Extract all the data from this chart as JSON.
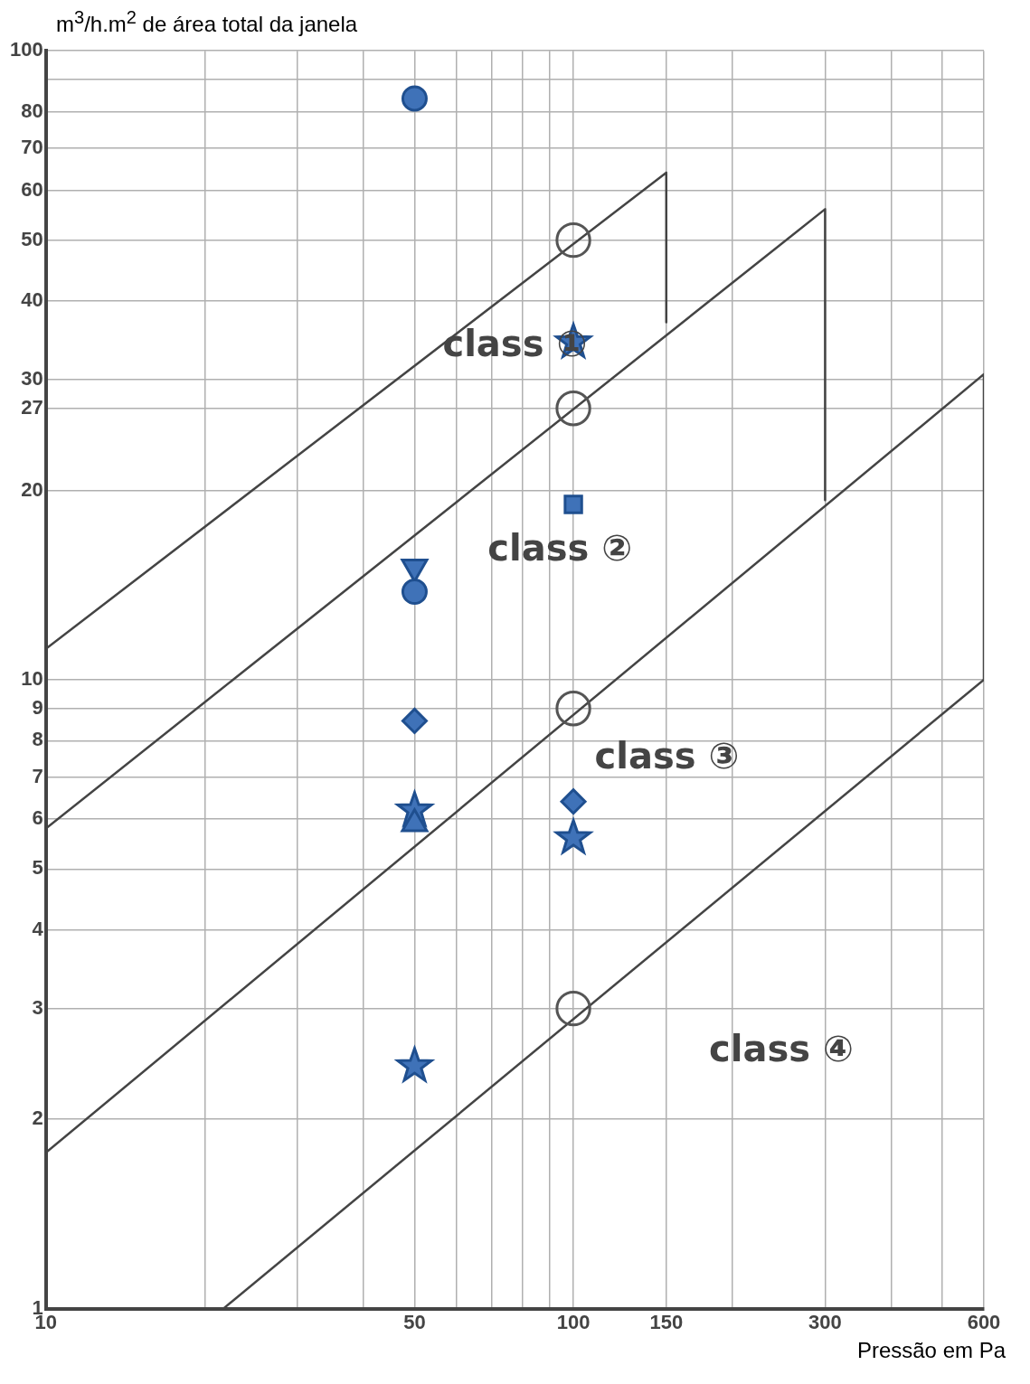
{
  "chart_data": {
    "type": "scatter",
    "xlabel": "Pressão em Pa",
    "ylabel": "m$^{3}$/h.m$^{2}$ de área total da janela",
    "log": "xy",
    "grid": true,
    "legend": false,
    "xlim": [
      10,
      600
    ],
    "ylim": [
      1,
      100
    ],
    "xticks": [
      10,
      {
        "value": 20,
        "label": null
      },
      {
        "value": 30,
        "label": null
      },
      {
        "value": 40,
        "label": null
      },
      50,
      {
        "value": 60,
        "label": null
      },
      {
        "value": 70,
        "label": null
      },
      {
        "value": 80,
        "label": null
      },
      {
        "value": 90,
        "label": null
      },
      100,
      150,
      {
        "value": 200,
        "label": null
      },
      300,
      {
        "value": 400,
        "label": null
      },
      {
        "value": 500,
        "label": null
      },
      600
    ],
    "yticks": [
      1,
      2,
      3,
      4,
      5,
      6,
      7,
      8,
      9,
      10,
      20,
      27,
      30,
      40,
      50,
      60,
      70,
      80,
      {
        "value": 90,
        "label": null
      },
      100
    ],
    "series": [
      {
        "type": "line",
        "color": "#444444",
        "marker": "none",
        "x": [
          10,
          150,
          150
        ],
        "values": [
          11.2,
          64,
          37
        ]
      },
      {
        "type": "line",
        "color": "#444444",
        "marker": "none",
        "x": [
          10,
          300,
          300
        ],
        "values": [
          5.8,
          56,
          19.3
        ]
      },
      {
        "type": "line",
        "color": "#444444",
        "marker": "none",
        "x": [
          10,
          600,
          600
        ],
        "values": [
          1.77,
          30.6,
          10
        ]
      },
      {
        "type": "line",
        "color": "#444444",
        "marker": "none",
        "x": [
          21.7,
          600
        ],
        "values": [
          1,
          10
        ]
      },
      {
        "color": "#555555",
        "marker": "circle_open",
        "x": [
          100,
          100,
          100,
          100
        ],
        "values": [
          50,
          27,
          9,
          3
        ]
      },
      {
        "color": "#3f72b8",
        "marker": "circle",
        "x": [
          50
        ],
        "values": [
          84
        ]
      },
      {
        "color": "#3f72b8",
        "marker": "triangle_down",
        "x": [
          50
        ],
        "values": [
          15.1
        ]
      },
      {
        "color": "#3f72b8",
        "marker": "circle",
        "x": [
          50
        ],
        "values": [
          13.8
        ]
      },
      {
        "color": "#3f72b8",
        "marker": "diamond",
        "x": [
          50,
          100
        ],
        "values": [
          8.6,
          6.4
        ]
      },
      {
        "color": "#3f72b8",
        "marker": "star",
        "x": [
          50,
          100
        ],
        "values": [
          6.2,
          34.4
        ]
      },
      {
        "color": "#3f72b8",
        "marker": "triangle",
        "x": [
          50
        ],
        "values": [
          5.9
        ]
      },
      {
        "color": "#3f72b8",
        "marker": "star",
        "x": [
          50,
          100
        ],
        "values": [
          2.43,
          5.6
        ]
      },
      {
        "color": "#3f72b8",
        "marker": "square",
        "x": [
          100
        ],
        "values": [
          19
        ]
      }
    ],
    "annotations": [
      "class ①",
      "class ②",
      "class ③",
      "class ④"
    ]
  }
}
